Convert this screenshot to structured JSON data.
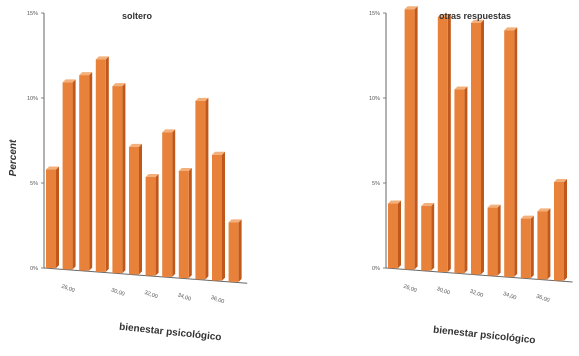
{
  "ylabel": "Percent",
  "colors": {
    "bar_front": "#e8823a",
    "bar_side": "#c0581c",
    "bar_top": "#f4b07a",
    "axis": "#666666"
  },
  "chart_data": [
    {
      "type": "bar",
      "title": "soltero",
      "xlabel": "bienestar psicológico",
      "ylabel": "Percent",
      "ylim": [
        0,
        15
      ],
      "yticks": [
        "0%",
        "5%",
        "10%",
        "15%"
      ],
      "xticks": [
        "26,00",
        "30,00",
        "32,00",
        "34,00",
        "36,00"
      ],
      "values": [
        5.8,
        11.0,
        11.5,
        12.5,
        11.0,
        7.5,
        5.8,
        8.5,
        6.3,
        10.5,
        7.4,
        3.5
      ],
      "grid": false
    },
    {
      "type": "bar",
      "title": "otras respuestas",
      "xlabel": "bienestar psicológico",
      "ylabel": "",
      "ylim": [
        0,
        15
      ],
      "yticks": [
        "0%",
        "5%",
        "10%",
        "15%"
      ],
      "xticks": [
        "26,00",
        "30,00",
        "32,00",
        "34,00",
        "36,00"
      ],
      "values": [
        3.8,
        15.3,
        3.8,
        15.0,
        10.8,
        14.8,
        4.0,
        14.5,
        3.5,
        4.0,
        5.8
      ],
      "grid": false
    }
  ]
}
